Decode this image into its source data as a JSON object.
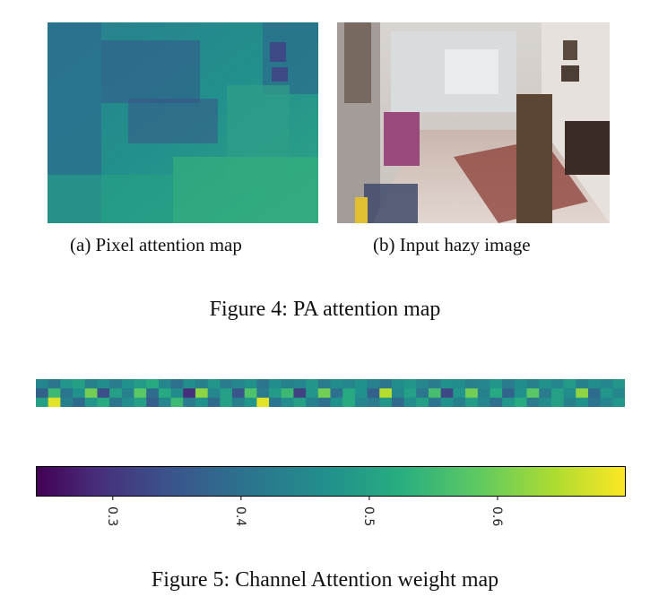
{
  "figure4": {
    "subcaption_a": "(a) Pixel attention map",
    "subcaption_b": "(b) Input hazy image",
    "caption": "Figure 4: PA attention map"
  },
  "figure5": {
    "caption": "Figure 5: Channel Attention weight map",
    "colorbar": {
      "colormap": "viridis",
      "ticks": [
        "0.3",
        "0.4",
        "0.5",
        "0.6"
      ]
    }
  },
  "colors": {
    "viridis": [
      "#440154",
      "#472d7b",
      "#3b528b",
      "#2c728e",
      "#21918c",
      "#28ae80",
      "#5ec962",
      "#addc30",
      "#fde725"
    ]
  },
  "chart_data": {
    "type": "heatmap",
    "rows": 3,
    "cols": 48,
    "vmin": 0.24,
    "vmax": 0.7,
    "values": [
      [
        0.45,
        0.42,
        0.48,
        0.5,
        0.44,
        0.46,
        0.43,
        0.47,
        0.49,
        0.52,
        0.45,
        0.41,
        0.46,
        0.44,
        0.48,
        0.43,
        0.45,
        0.47,
        0.42,
        0.46,
        0.44,
        0.45,
        0.48,
        0.43,
        0.46,
        0.45,
        0.47,
        0.44,
        0.42,
        0.46,
        0.48,
        0.45,
        0.43,
        0.47,
        0.46,
        0.44,
        0.45,
        0.48,
        0.43,
        0.46,
        0.44,
        0.47,
        0.45,
        0.49,
        0.44,
        0.46,
        0.45,
        0.48
      ],
      [
        0.38,
        0.55,
        0.42,
        0.47,
        0.6,
        0.35,
        0.5,
        0.44,
        0.58,
        0.4,
        0.52,
        0.46,
        0.3,
        0.62,
        0.45,
        0.5,
        0.36,
        0.57,
        0.43,
        0.49,
        0.55,
        0.33,
        0.48,
        0.6,
        0.41,
        0.52,
        0.47,
        0.38,
        0.65,
        0.45,
        0.5,
        0.42,
        0.56,
        0.34,
        0.48,
        0.6,
        0.44,
        0.52,
        0.39,
        0.47,
        0.58,
        0.43,
        0.5,
        0.46,
        0.62,
        0.4,
        0.48,
        0.45
      ],
      [
        0.5,
        0.68,
        0.44,
        0.4,
        0.48,
        0.52,
        0.42,
        0.46,
        0.5,
        0.38,
        0.45,
        0.55,
        0.43,
        0.47,
        0.4,
        0.5,
        0.44,
        0.48,
        0.68,
        0.42,
        0.46,
        0.5,
        0.44,
        0.41,
        0.47,
        0.52,
        0.45,
        0.43,
        0.48,
        0.4,
        0.46,
        0.5,
        0.42,
        0.47,
        0.44,
        0.49,
        0.45,
        0.41,
        0.48,
        0.52,
        0.43,
        0.46,
        0.5,
        0.44,
        0.47,
        0.42,
        0.45,
        0.48
      ]
    ],
    "colorbar_range": [
      0.24,
      0.7
    ],
    "colorbar_ticks": [
      0.3,
      0.4,
      0.5,
      0.6
    ]
  }
}
